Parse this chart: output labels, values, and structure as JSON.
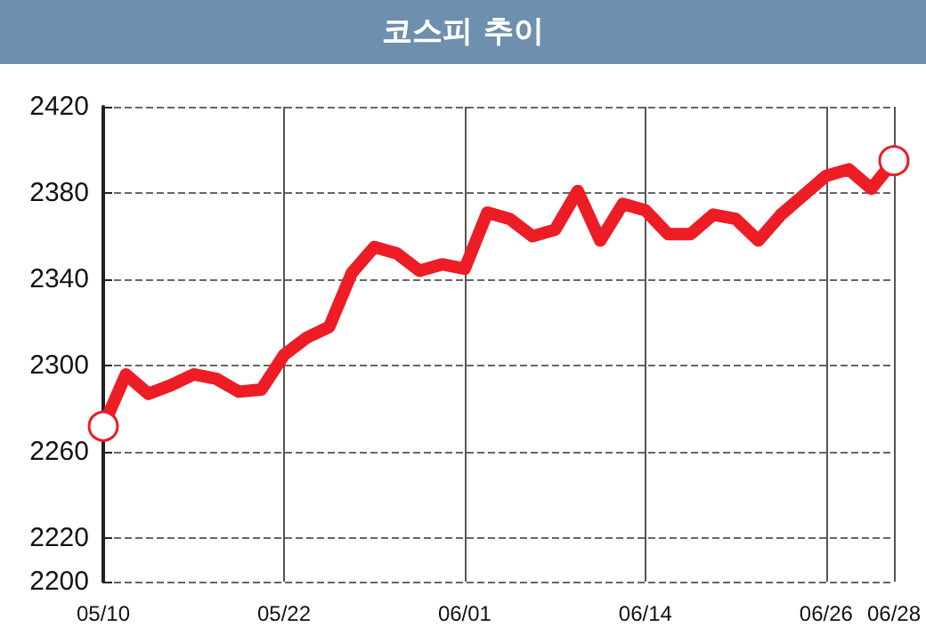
{
  "chart_data": {
    "type": "line",
    "title": "코스피 추이",
    "categories": [
      "05/10",
      null,
      null,
      null,
      null,
      null,
      null,
      null,
      "05/22",
      null,
      null,
      null,
      null,
      null,
      null,
      null,
      "06/01",
      null,
      null,
      null,
      null,
      null,
      null,
      null,
      "06/14",
      null,
      null,
      null,
      null,
      null,
      null,
      null,
      "06/26",
      null,
      null,
      "06/28"
    ],
    "series": [
      {
        "color": "#ee1c25",
        "values": [
          2272,
          2296,
          2287,
          2291,
          2296,
          2294,
          2288,
          2289,
          2305,
          2313,
          2318,
          2343,
          2355,
          2352,
          2344,
          2347,
          2345,
          2371,
          2368,
          2360,
          2363,
          2381,
          2358,
          2375,
          2372,
          2361,
          2361,
          2370,
          2368,
          2358,
          2370,
          2379,
          2388,
          2391,
          2382,
          2395
        ]
      }
    ],
    "ylim": [
      2200,
      2420
    ],
    "yticks": [
      2200,
      2220,
      2260,
      2300,
      2340,
      2380,
      2420
    ],
    "grid": true,
    "marker": "none",
    "line_style": "solid"
  }
}
